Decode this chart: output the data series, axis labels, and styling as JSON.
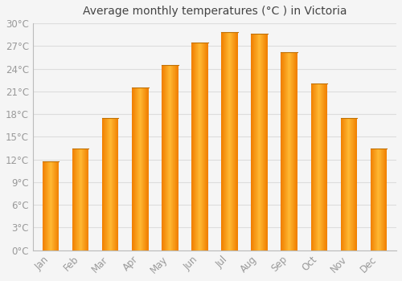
{
  "title": "Average monthly temperatures (°C ) in Victoria",
  "months": [
    "Jan",
    "Feb",
    "Mar",
    "Apr",
    "May",
    "Jun",
    "Jul",
    "Aug",
    "Sep",
    "Oct",
    "Nov",
    "Dec"
  ],
  "values": [
    11.8,
    13.5,
    17.5,
    21.5,
    24.5,
    27.5,
    28.8,
    28.6,
    26.2,
    22.0,
    17.5,
    13.5
  ],
  "bar_color_center": "#FFB833",
  "bar_color_edge": "#F08000",
  "background_color": "#F5F5F5",
  "plot_bg_color": "#F5F5F5",
  "grid_color": "#DDDDDD",
  "tick_label_color": "#999999",
  "title_color": "#444444",
  "ylim": [
    0,
    30
  ],
  "ytick_step": 3,
  "title_fontsize": 10,
  "tick_fontsize": 8.5,
  "bar_width": 0.55
}
